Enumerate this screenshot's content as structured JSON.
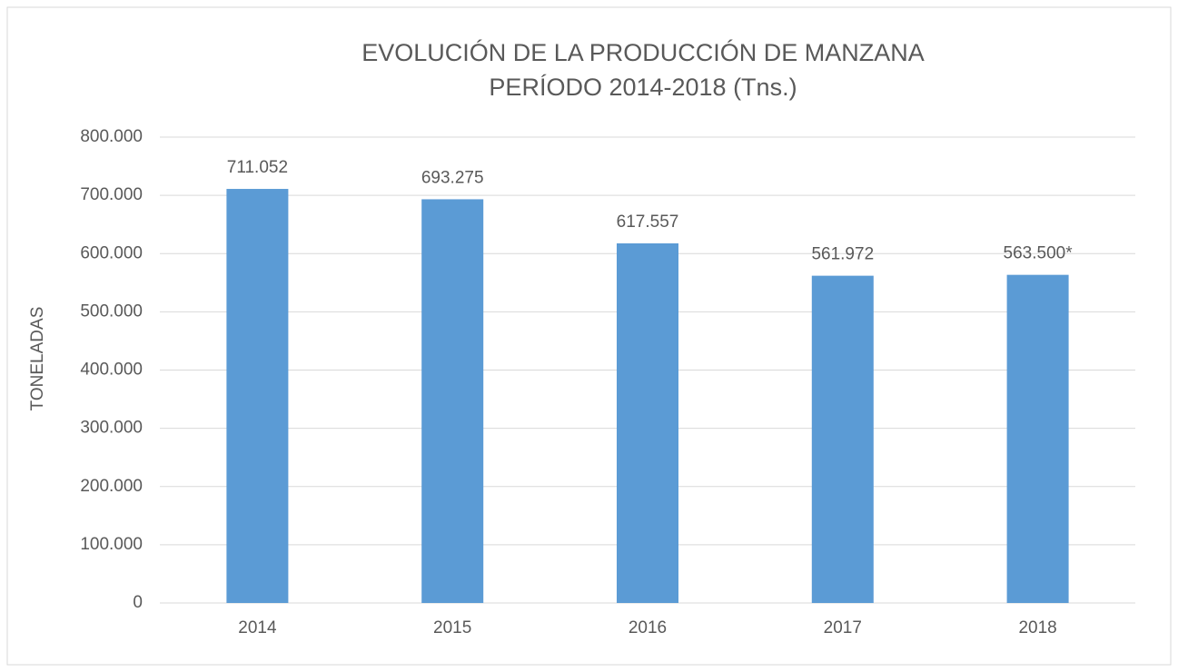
{
  "chart_data": {
    "type": "bar",
    "title": "EVOLUCIÓN DE LA PRODUCCIÓN DE MANZANA",
    "subtitle": "PERÍODO 2014-2018 (Tns.)",
    "y_label": "TONELADAS",
    "categories": [
      "2014",
      "2015",
      "2016",
      "2017",
      "2018"
    ],
    "values": [
      711052,
      693275,
      617557,
      561972,
      563500
    ],
    "value_labels": [
      "711.052",
      "693.275",
      "617.557",
      "561.972",
      "563.500*"
    ],
    "color": "#5b9bd5",
    "ylim": [
      0,
      800000
    ],
    "yticks": [
      0,
      {
        "value": 100000,
        "label": "100.000"
      },
      {
        "value": 200000,
        "label": "200.000"
      },
      {
        "value": 300000,
        "label": "300.000"
      },
      {
        "value": 400000,
        "label": "400.000"
      },
      {
        "value": 500000,
        "label": "500.000"
      },
      {
        "value": 600000,
        "label": "600.000"
      },
      {
        "value": 700000,
        "label": "700.000"
      },
      {
        "value": 800000,
        "label": "800.000"
      }
    ],
    "grid": true
  }
}
